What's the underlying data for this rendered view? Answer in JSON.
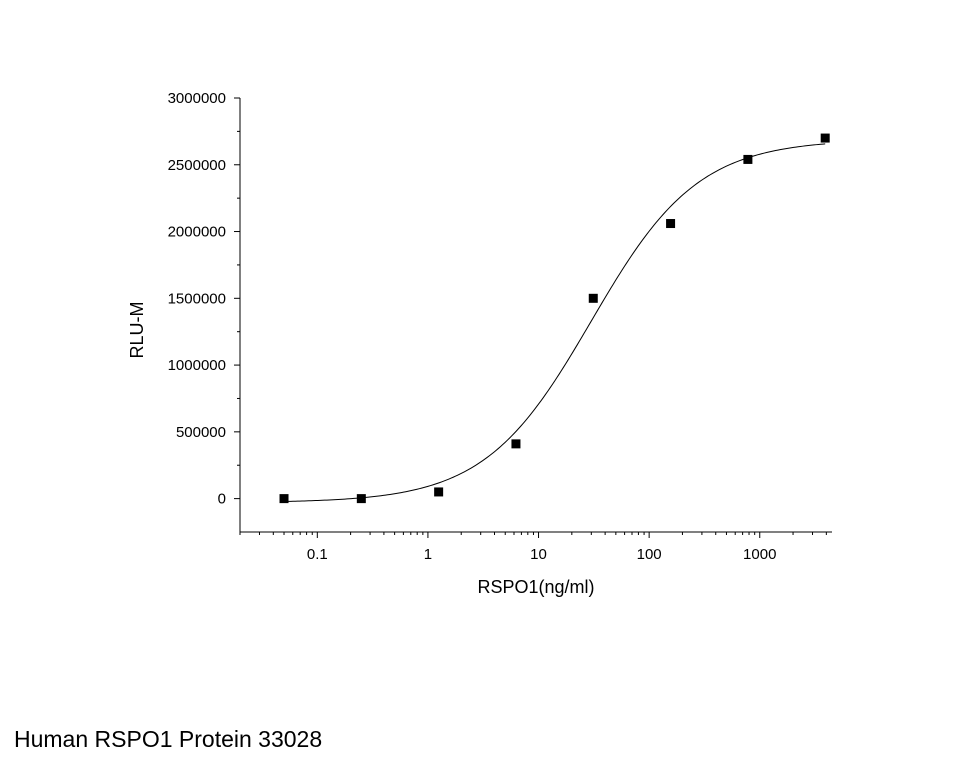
{
  "caption": "Human RSPO1 Protein 33028",
  "chart_data": {
    "type": "scatter",
    "title": "",
    "xlabel": "RSPO1(ng/ml)",
    "ylabel": "RLU-M",
    "xscale": "log",
    "xlim": [
      0.02,
      4500
    ],
    "ylim": [
      -250000,
      3000000
    ],
    "x_ticks": [
      0.1,
      1,
      10,
      100,
      1000
    ],
    "x_tick_labels": [
      "0.1",
      "1",
      "10",
      "100",
      "1000"
    ],
    "y_ticks": [
      0,
      500000,
      1000000,
      1500000,
      2000000,
      2500000,
      3000000
    ],
    "y_tick_labels": [
      "0",
      "500000",
      "1000000",
      "1500000",
      "2000000",
      "2500000",
      "3000000"
    ],
    "points": [
      {
        "x": 0.05,
        "y": 0
      },
      {
        "x": 0.25,
        "y": 0
      },
      {
        "x": 1.25,
        "y": 50000
      },
      {
        "x": 6.25,
        "y": 410000
      },
      {
        "x": 31.25,
        "y": 1500000
      },
      {
        "x": 156.25,
        "y": 2060000
      },
      {
        "x": 781.25,
        "y": 2540000
      },
      {
        "x": 3906.25,
        "y": 2700000
      }
    ],
    "fit": {
      "type": "4PL",
      "bottom": -30000,
      "top": 2690000,
      "ec50": 30,
      "hill": 0.9,
      "x_range": [
        0.05,
        3906.25
      ]
    },
    "grid": false,
    "legend": "none"
  }
}
